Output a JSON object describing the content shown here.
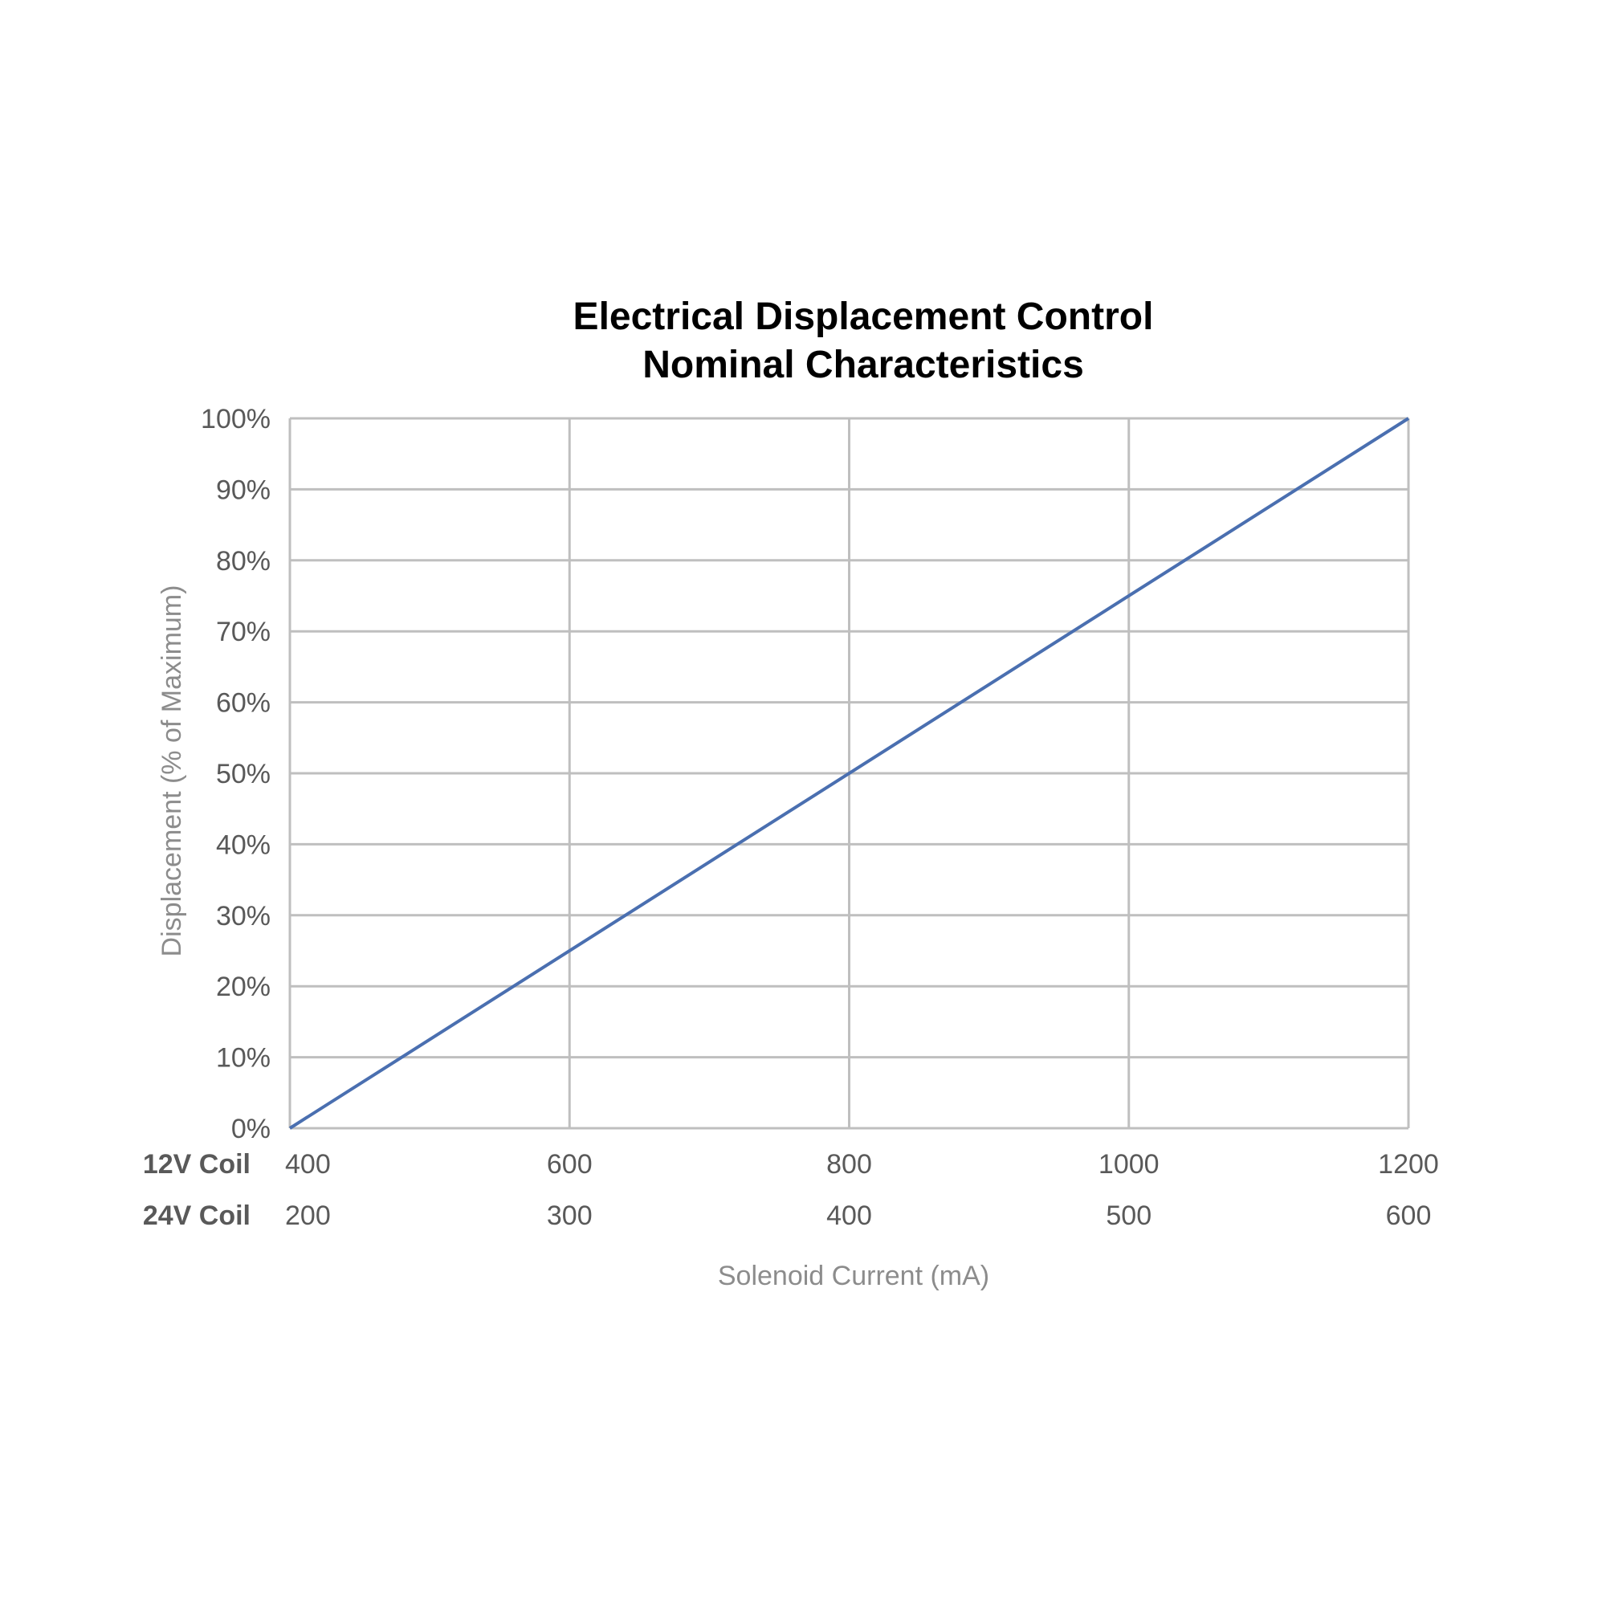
{
  "chart_data": {
    "type": "line",
    "title": [
      "Electrical Displacement Control",
      "Nominal Characteristics"
    ],
    "xlabel": "Solenoid Current (mA)",
    "ylabel": "Displacement (% of Maximum)",
    "x_rows": [
      {
        "label": "12V Coil",
        "ticks": [
          "400",
          "600",
          "800",
          "1000",
          "1200"
        ]
      },
      {
        "label": "24V Coil",
        "ticks": [
          "200",
          "300",
          "400",
          "500",
          "600"
        ]
      }
    ],
    "xlim": [
      400,
      1200
    ],
    "ylim": [
      0,
      100
    ],
    "y_ticks": [
      "0%",
      "10%",
      "20%",
      "30%",
      "40%",
      "50%",
      "60%",
      "70%",
      "80%",
      "90%",
      "100%"
    ],
    "grid": true,
    "series": [
      {
        "x": [
          400,
          1200
        ],
        "y": [
          0,
          100
        ],
        "color": "#4a6fb0"
      }
    ]
  }
}
